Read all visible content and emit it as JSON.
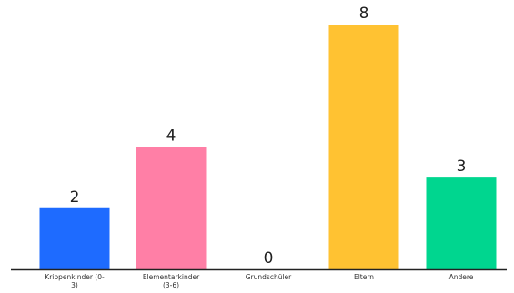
{
  "chart_data": {
    "type": "bar",
    "categories": [
      [
        "Krippenkinder (0-",
        "3)"
      ],
      [
        "Elementarkinder",
        "(3-6)"
      ],
      [
        "Grundschüler"
      ],
      [
        "Eltern"
      ],
      [
        "Andere"
      ]
    ],
    "values": [
      2,
      4,
      0,
      8,
      3
    ],
    "value_labels": [
      "2",
      "4",
      "0",
      "8",
      "3"
    ],
    "colors": [
      "#1e6bff",
      "#ff7fa6",
      "#8a8a8a",
      "#ffc232",
      "#00d68f"
    ],
    "ylim": [
      0,
      8
    ],
    "grid": false,
    "title": "",
    "xlabel": "",
    "ylabel": ""
  }
}
